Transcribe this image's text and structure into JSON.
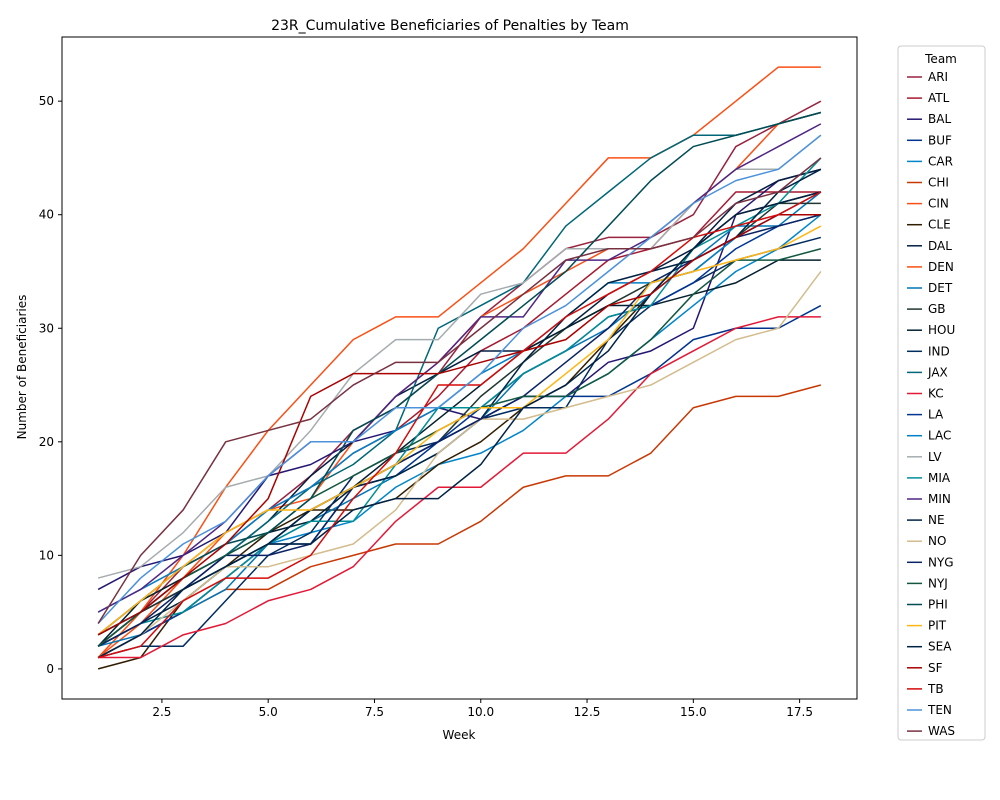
{
  "chart_data": {
    "type": "line",
    "title": "23R_Cumulative Beneficiaries of Penalties by Team",
    "xlabel": "Week",
    "ylabel": "Number of Beneficiaries",
    "xlim": [
      0.15,
      18.85
    ],
    "ylim": [
      -2.65,
      55.65
    ],
    "x_ticks": [
      2.5,
      5.0,
      7.5,
      10.0,
      12.5,
      15.0,
      17.5
    ],
    "y_ticks": [
      0,
      10,
      20,
      30,
      40,
      50
    ],
    "grid": false,
    "legend_title": "Team",
    "legend_position": "outside-right",
    "x": [
      1,
      2,
      3,
      4,
      5,
      6,
      7,
      8,
      9,
      10,
      11,
      12,
      13,
      14,
      15,
      16,
      17,
      18
    ],
    "series": [
      {
        "name": "ARI",
        "color": "#97233F",
        "values": [
          2,
          5,
          9,
          11,
          14,
          17,
          21,
          23,
          26,
          31,
          34,
          37,
          38,
          38,
          40,
          46,
          48,
          50
        ]
      },
      {
        "name": "ATL",
        "color": "#A71930",
        "values": [
          3,
          6,
          9,
          12,
          14,
          16,
          19,
          21,
          24,
          28,
          30,
          33,
          36,
          37,
          38,
          42,
          42,
          42
        ]
      },
      {
        "name": "BAL",
        "color": "#241773",
        "values": [
          7,
          9,
          10,
          12,
          17,
          18,
          20,
          21,
          23,
          22,
          24,
          24,
          27,
          28,
          30,
          40,
          43,
          44
        ]
      },
      {
        "name": "BUF",
        "color": "#00338D",
        "values": [
          1,
          3,
          5,
          8,
          11,
          11,
          16,
          17,
          20,
          22,
          24,
          24,
          24,
          26,
          29,
          30,
          30,
          32
        ]
      },
      {
        "name": "CAR",
        "color": "#0085CA",
        "values": [
          3,
          5,
          7,
          9,
          11,
          12,
          13,
          16,
          18,
          19,
          21,
          24,
          26,
          29,
          32,
          35,
          37,
          40
        ]
      },
      {
        "name": "CHI",
        "color": "#C83803",
        "values": [
          1,
          3,
          5,
          7,
          7,
          9,
          10,
          11,
          11,
          13,
          16,
          17,
          17,
          19,
          23,
          24,
          24,
          25
        ]
      },
      {
        "name": "CIN",
        "color": "#FB4F14",
        "values": [
          1,
          4,
          8,
          12,
          14,
          15,
          20,
          24,
          27,
          31,
          33,
          35,
          37,
          37,
          41,
          44,
          48,
          49
        ]
      },
      {
        "name": "CLE",
        "color": "#311D00",
        "values": [
          0,
          1,
          6,
          9,
          12,
          14,
          14,
          15,
          18,
          20,
          23,
          25,
          29,
          33,
          37,
          40,
          41,
          42
        ]
      },
      {
        "name": "DAL",
        "color": "#041E42",
        "values": [
          2,
          5,
          7,
          10,
          13,
          17,
          20,
          24,
          26,
          28,
          28,
          30,
          33,
          35,
          37,
          41,
          43,
          44
        ]
      },
      {
        "name": "DEN",
        "color": "#FB4F14",
        "values": [
          1,
          5,
          10,
          16,
          21,
          25,
          29,
          31,
          31,
          34,
          37,
          41,
          45,
          45,
          47,
          50,
          53,
          53
        ]
      },
      {
        "name": "DET",
        "color": "#0076B6",
        "values": [
          2,
          3,
          5,
          7,
          11,
          13,
          15,
          17,
          19,
          22,
          26,
          28,
          30,
          33,
          36,
          39,
          39,
          42
        ]
      },
      {
        "name": "GB",
        "color": "#203731",
        "values": [
          2,
          5,
          7,
          9,
          11,
          14,
          16,
          18,
          20,
          24,
          27,
          30,
          32,
          34,
          35,
          38,
          41,
          41
        ]
      },
      {
        "name": "HOU",
        "color": "#03202F",
        "values": [
          2,
          6,
          8,
          10,
          12,
          13,
          16,
          19,
          22,
          25,
          28,
          30,
          32,
          32,
          33,
          34,
          36,
          36
        ]
      },
      {
        "name": "IND",
        "color": "#002C5F",
        "values": [
          1,
          2,
          2,
          6,
          10,
          12,
          17,
          19,
          20,
          22,
          23,
          23,
          29,
          32,
          34,
          36,
          37,
          38
        ]
      },
      {
        "name": "JAX",
        "color": "#006778",
        "values": [
          3,
          5,
          8,
          10,
          13,
          16,
          18,
          21,
          30,
          32,
          34,
          39,
          42,
          45,
          47,
          47,
          48,
          49
        ]
      },
      {
        "name": "KC",
        "color": "#E31837",
        "values": [
          1,
          1,
          3,
          4,
          6,
          7,
          9,
          13,
          16,
          16,
          19,
          19,
          22,
          26,
          28,
          30,
          31,
          31
        ]
      },
      {
        "name": "LA",
        "color": "#003594",
        "values": [
          1,
          3,
          5,
          8,
          11,
          14,
          16,
          18,
          20,
          23,
          26,
          28,
          31,
          32,
          34,
          37,
          39,
          40
        ]
      },
      {
        "name": "LAC",
        "color": "#0080C6",
        "values": [
          5,
          7,
          9,
          11,
          14,
          16,
          19,
          21,
          23,
          26,
          28,
          31,
          34,
          34,
          35,
          38,
          40,
          42
        ]
      },
      {
        "name": "LV",
        "color": "#A5ACAF",
        "values": [
          8,
          9,
          12,
          16,
          17,
          21,
          26,
          29,
          29,
          33,
          34,
          37,
          37,
          37,
          41,
          44,
          44,
          47
        ]
      },
      {
        "name": "MIA",
        "color": "#008E97",
        "values": [
          2,
          4,
          5,
          8,
          11,
          13,
          13,
          18,
          23,
          23,
          26,
          28,
          31,
          32,
          37,
          39,
          41,
          45
        ]
      },
      {
        "name": "MIN",
        "color": "#4F2683",
        "values": [
          5,
          7,
          10,
          13,
          17,
          20,
          20,
          24,
          27,
          31,
          31,
          36,
          36,
          38,
          41,
          44,
          46,
          48
        ]
      },
      {
        "name": "NE",
        "color": "#002244",
        "values": [
          2,
          4,
          6,
          9,
          11,
          14,
          16,
          17,
          19,
          22,
          27,
          31,
          34,
          35,
          36,
          38,
          42,
          44
        ]
      },
      {
        "name": "NO",
        "color": "#D3BC8D",
        "values": [
          1,
          3,
          6,
          9,
          9,
          10,
          11,
          14,
          19,
          22,
          22,
          23,
          24,
          25,
          27,
          29,
          30,
          35
        ]
      },
      {
        "name": "NYG",
        "color": "#0B2265",
        "values": [
          2,
          4,
          7,
          10,
          10,
          11,
          16,
          18,
          20,
          22,
          24,
          27,
          30,
          34,
          36,
          38,
          39,
          40
        ]
      },
      {
        "name": "NYJ",
        "color": "#125740",
        "values": [
          2,
          5,
          8,
          10,
          12,
          15,
          17,
          19,
          21,
          23,
          24,
          24,
          26,
          29,
          33,
          36,
          36,
          37
        ]
      },
      {
        "name": "PHI",
        "color": "#004C54",
        "values": [
          3,
          6,
          9,
          11,
          12,
          15,
          21,
          23,
          26,
          29,
          32,
          35,
          39,
          43,
          46,
          47,
          48,
          49
        ]
      },
      {
        "name": "PIT",
        "color": "#FFB612",
        "values": [
          3,
          6,
          9,
          12,
          14,
          14,
          16,
          18,
          21,
          23,
          23,
          26,
          29,
          34,
          35,
          36,
          37,
          39
        ]
      },
      {
        "name": "SEA",
        "color": "#002244",
        "values": [
          1,
          3,
          7,
          9,
          11,
          11,
          14,
          15,
          15,
          18,
          23,
          25,
          28,
          33,
          37,
          40,
          41,
          42
        ]
      },
      {
        "name": "SF",
        "color": "#AA0000",
        "values": [
          3,
          5,
          8,
          11,
          15,
          24,
          26,
          26,
          26,
          27,
          28,
          29,
          32,
          33,
          36,
          38,
          40,
          40
        ]
      },
      {
        "name": "TB",
        "color": "#D50A0A",
        "values": [
          1,
          2,
          6,
          8,
          8,
          10,
          15,
          19,
          25,
          25,
          28,
          31,
          33,
          35,
          38,
          39,
          40,
          42
        ]
      },
      {
        "name": "TEN",
        "color": "#4B92DB",
        "values": [
          4,
          8,
          11,
          13,
          17,
          20,
          20,
          23,
          23,
          26,
          30,
          32,
          35,
          38,
          41,
          43,
          44,
          47
        ]
      },
      {
        "name": "WAS",
        "color": "#773141",
        "values": [
          4,
          10,
          14,
          20,
          21,
          22,
          25,
          27,
          27,
          30,
          33,
          36,
          37,
          37,
          38,
          41,
          42,
          45
        ]
      }
    ]
  }
}
